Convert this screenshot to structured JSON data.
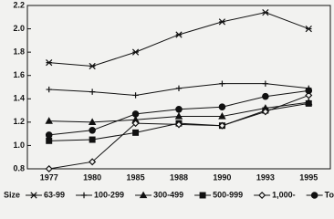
{
  "chart_data": {
    "type": "line",
    "categories": [
      "1977",
      "1980",
      "1985",
      "1988",
      "1990",
      "1993",
      "1995"
    ],
    "ylim": [
      0.8,
      2.2
    ],
    "yticks": [
      0.8,
      {
        "value": 1,
        "label": "1.0"
      },
      1.2,
      1.4,
      1.6,
      1.8,
      {
        "value": 2,
        "label": "2.0"
      },
      2.2
    ],
    "legend_title": "Size",
    "legend": "bottom",
    "series": [
      {
        "name": "63-99",
        "color": "#111111",
        "marker": "asterisk",
        "values": [
          1.71,
          1.68,
          1.8,
          1.95,
          2.06,
          2.14,
          2.0
        ]
      },
      {
        "name": "100-299",
        "color": "#111111",
        "marker": "plus",
        "values": [
          1.48,
          1.46,
          1.43,
          1.49,
          1.53,
          1.53,
          1.49
        ]
      },
      {
        "name": "300-499",
        "color": "#111111",
        "marker": "triangle",
        "values": [
          1.21,
          1.2,
          1.22,
          1.25,
          1.25,
          1.32,
          1.37
        ]
      },
      {
        "name": "500-999",
        "color": "#111111",
        "marker": "square",
        "values": [
          1.04,
          1.05,
          1.11,
          1.19,
          1.17,
          1.3,
          1.36
        ]
      },
      {
        "name": "1,000-",
        "color": "#111111",
        "marker": "diamond",
        "values": [
          0.8,
          0.86,
          1.19,
          1.18,
          1.17,
          1.29,
          1.43
        ]
      },
      {
        "name": "Total",
        "color": "#111111",
        "marker": "circle",
        "values": [
          1.09,
          1.13,
          1.27,
          1.31,
          1.33,
          1.42,
          1.47
        ]
      }
    ]
  }
}
